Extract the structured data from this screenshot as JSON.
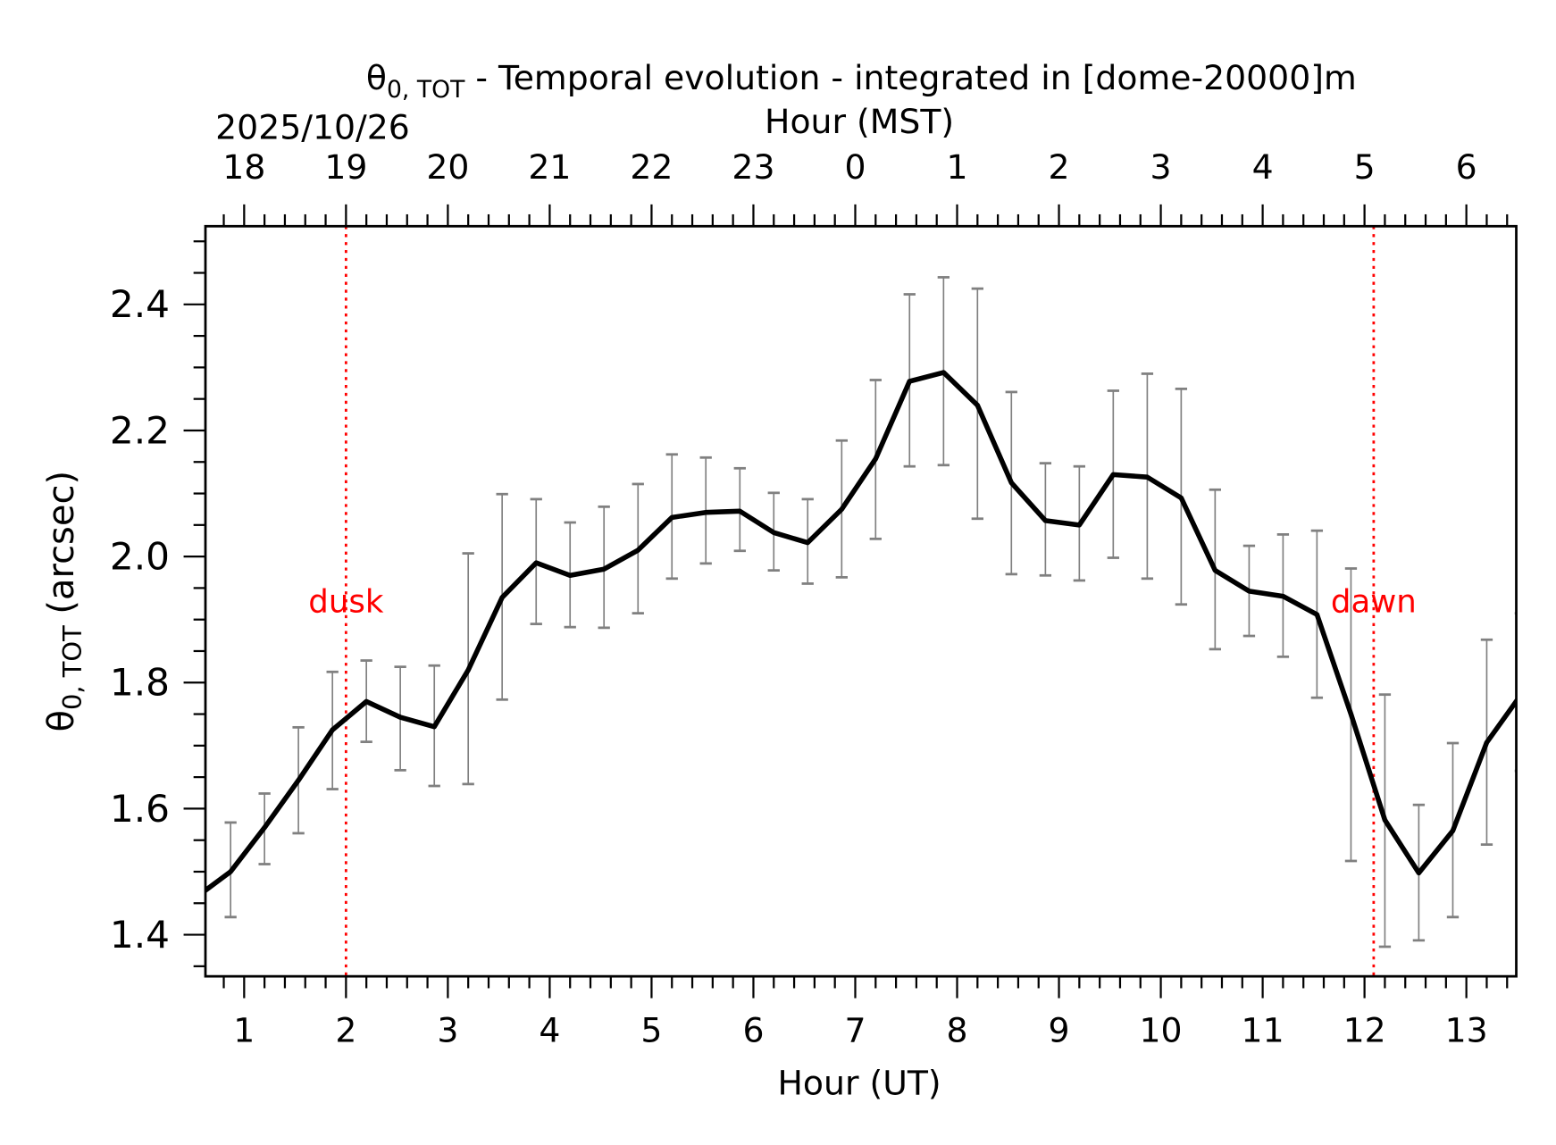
{
  "chart_data": {
    "type": "line",
    "title_symbol": "θ",
    "title_subscript": "0, TOT",
    "title_rest": " - Temporal evolution - integrated in [dome-20000]m",
    "date_label": "2025/10/26",
    "xlabel": "Hour (UT)",
    "xlabel_top": "Hour (MST)",
    "ylabel_symbol": "θ",
    "ylabel_subscript": "0, TOT",
    "ylabel_rest": " (arcsec)",
    "xlim": [
      0.62,
      13.49
    ],
    "ylim": [
      1.334,
      2.524
    ],
    "x_ticks": [
      1,
      2,
      3,
      4,
      5,
      6,
      7,
      8,
      9,
      10,
      11,
      12,
      13
    ],
    "x_tick_labels": [
      "1",
      "2",
      "3",
      "4",
      "5",
      "6",
      "7",
      "8",
      "9",
      "10",
      "11",
      "12",
      "13"
    ],
    "x_top_tick_labels": [
      "18",
      "19",
      "20",
      "21",
      "22",
      "23",
      "0",
      "1",
      "2",
      "3",
      "4",
      "5",
      "6"
    ],
    "y_ticks": [
      1.4,
      1.6,
      1.8,
      2.0,
      2.2,
      2.4
    ],
    "y_tick_labels": [
      "1.4",
      "1.6",
      "1.8",
      "2.0",
      "2.2",
      "2.4"
    ],
    "grid": false,
    "line_color": "#000000",
    "errorbar_color": "#808080",
    "marker_color": "#ff0000",
    "markers": [
      {
        "label": "dusk",
        "x": 2.0
      },
      {
        "label": "dawn",
        "x": 12.09
      }
    ],
    "x": [
      0.533,
      0.867,
      1.2,
      1.533,
      1.867,
      2.2,
      2.533,
      2.867,
      3.2,
      3.533,
      3.867,
      4.2,
      4.533,
      4.867,
      5.2,
      5.533,
      5.867,
      6.2,
      6.533,
      6.867,
      7.2,
      7.533,
      7.867,
      8.2,
      8.533,
      8.867,
      9.2,
      9.533,
      9.867,
      10.2,
      10.533,
      10.867,
      11.2,
      11.533,
      11.867,
      12.2,
      12.533,
      12.867,
      13.2,
      13.533
    ],
    "values": [
      1.46,
      1.5,
      1.57,
      1.645,
      1.725,
      1.77,
      1.745,
      1.73,
      1.82,
      1.935,
      1.99,
      1.97,
      1.98,
      2.01,
      2.062,
      2.07,
      2.072,
      2.038,
      2.022,
      2.075,
      2.155,
      2.278,
      2.292,
      2.24,
      2.117,
      2.057,
      2.05,
      2.13,
      2.126,
      2.093,
      1.978,
      1.945,
      1.937,
      1.908,
      1.75,
      1.582,
      1.498,
      1.565,
      1.705,
      1.78
    ],
    "upper": [
      null,
      1.578,
      1.624,
      1.729,
      1.817,
      1.835,
      1.825,
      1.827,
      2.005,
      2.099,
      2.091,
      2.054,
      2.079,
      2.115,
      2.162,
      2.157,
      2.14,
      2.101,
      2.091,
      2.184,
      2.28,
      2.416,
      2.443,
      2.425,
      2.261,
      2.148,
      2.143,
      2.263,
      2.29,
      2.266,
      2.106,
      2.017,
      2.035,
      2.041,
      1.981,
      1.781,
      1.606,
      1.704,
      1.868,
      1.91
    ],
    "lower": [
      null,
      1.428,
      1.512,
      1.561,
      1.631,
      1.706,
      1.661,
      1.636,
      1.639,
      1.773,
      1.893,
      1.888,
      1.887,
      1.91,
      1.965,
      1.989,
      2.009,
      1.978,
      1.957,
      1.967,
      2.028,
      2.143,
      2.145,
      2.06,
      1.972,
      1.97,
      1.962,
      1.998,
      1.965,
      1.924,
      1.853,
      1.874,
      1.841,
      1.776,
      1.517,
      1.381,
      1.391,
      1.428,
      1.543,
      1.66
    ]
  }
}
